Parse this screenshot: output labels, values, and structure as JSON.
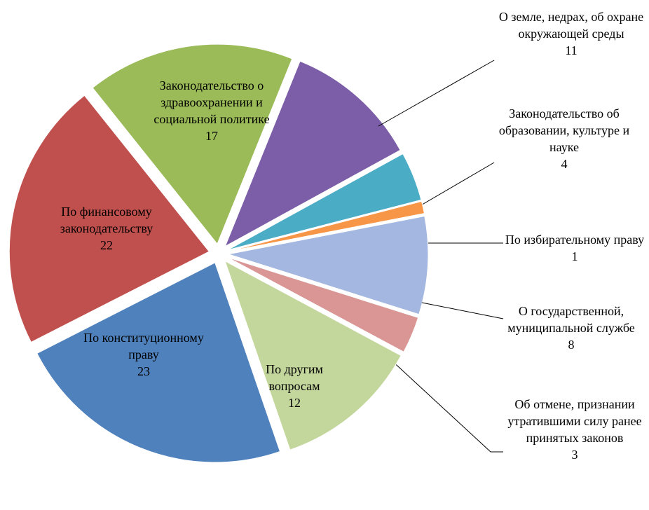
{
  "chart_data": {
    "type": "pie",
    "categories": [
      "О земле, недрах, об охране окружающей среды",
      "Законодательство об образовании, культуре и науке",
      "По избирательному праву",
      "О государственной, муниципальной службе",
      "Об отмене, признании утратившими силу ранее принятых законов",
      "По другим вопросам",
      "По конституционному праву",
      "По финансовому законодательству",
      "Законодательство о здравоохранении и социальной политике"
    ],
    "values": [
      11,
      4,
      1,
      8,
      3,
      12,
      23,
      22,
      17
    ],
    "colors": [
      "#7b5ea7",
      "#4bacc6",
      "#f79646",
      "#a3b7e0",
      "#d99694",
      "#c3d69b",
      "#4f81bd",
      "#c0504d",
      "#9bbb59"
    ]
  }
}
